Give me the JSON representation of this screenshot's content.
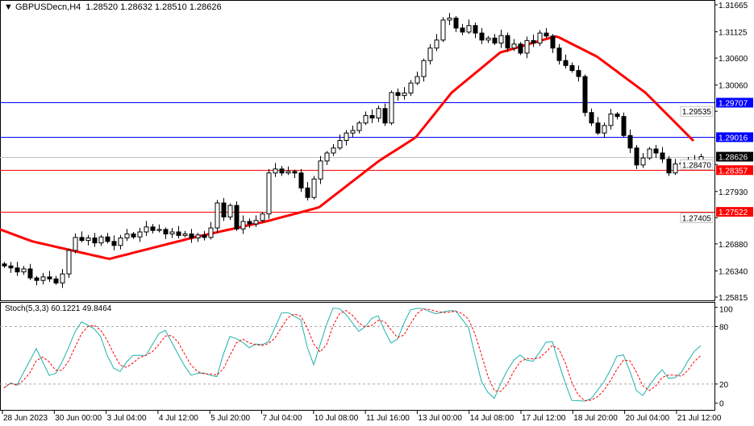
{
  "header": {
    "symbol_line": "GBPUSDecn,H4  1.28520 1.28632 1.28510 1.28626"
  },
  "chart_data": [
    {
      "type": "candlestick",
      "title": "GBPUSDecn,H4",
      "ohlc_last": {
        "open": 1.2852,
        "high": 1.28632,
        "low": 1.2851,
        "close": 1.28626
      },
      "ylim": [
        1.25815,
        1.31665
      ],
      "y_ticks": [
        "1.31665",
        "1.31125",
        "1.30600",
        "1.30060",
        "1.29535",
        "1.28470",
        "1.27930",
        "1.27405",
        "1.26880",
        "1.26340",
        "1.25815"
      ],
      "y_tick_values": [
        1.31665,
        1.31125,
        1.306,
        1.3006,
        1.29535,
        1.2847,
        1.2793,
        1.27405,
        1.2688,
        1.2634,
        1.25815
      ],
      "closes": [
        1.2644,
        1.264,
        1.2632,
        1.2638,
        1.262,
        1.2615,
        1.2622,
        1.2618,
        1.261,
        1.2628,
        1.2675,
        1.2701,
        1.2695,
        1.27,
        1.269,
        1.2702,
        1.2693,
        1.2685,
        1.27,
        1.2708,
        1.2702,
        1.2712,
        1.2722,
        1.2715,
        1.2717,
        1.2708,
        1.2712,
        1.2705,
        1.2708,
        1.27,
        1.2706,
        1.2701,
        1.272,
        1.277,
        1.2742,
        1.2765,
        1.2718,
        1.2733,
        1.2728,
        1.2735,
        1.2748,
        1.283,
        1.2838,
        1.283,
        1.2833,
        1.283,
        1.28,
        1.2781,
        1.2818,
        1.2854,
        1.287,
        1.288,
        1.2895,
        1.291,
        1.2915,
        1.293,
        1.2945,
        1.294,
        1.2959,
        1.293,
        1.2991,
        1.2985,
        1.299,
        1.301,
        1.3023,
        1.3055,
        1.308,
        1.3096,
        1.3136,
        1.314,
        1.312,
        1.3112,
        1.3125,
        1.311,
        1.3096,
        1.31,
        1.309,
        1.3105,
        1.308,
        1.3088,
        1.307,
        1.3095,
        1.309,
        1.311,
        1.3104,
        1.308,
        1.3055,
        1.3045,
        1.3035,
        1.3023,
        1.2951,
        1.293,
        1.291,
        1.2925,
        1.2948,
        1.2943,
        1.2905,
        1.288,
        1.2846,
        1.286,
        1.2878,
        1.287,
        1.2858,
        1.283,
        1.2848,
        1.285,
        1.2854,
        1.2852,
        1.28626
      ],
      "moving_average": {
        "color": "#ff0000",
        "points": [
          [
            -0.6,
            1.2717
          ],
          [
            4.4,
            1.2693
          ],
          [
            16.3,
            1.2658
          ],
          [
            29.4,
            1.2701
          ],
          [
            40.6,
            1.2733
          ],
          [
            48.8,
            1.2761
          ],
          [
            58.1,
            1.2854
          ],
          [
            63.8,
            1.2901
          ],
          [
            69.4,
            1.2991
          ],
          [
            76.9,
            1.3071
          ],
          [
            85.6,
            1.3104
          ],
          [
            91.9,
            1.3063
          ],
          [
            99.4,
            1.2991
          ],
          [
            106.9,
            1.2894
          ]
        ]
      },
      "levels": [
        {
          "value": 1.29707,
          "label": "1.29707",
          "color": "#0000ff"
        },
        {
          "value": 1.29016,
          "label": "1.29016",
          "color": "#0000ff"
        },
        {
          "value": 1.28626,
          "label": "1.28626",
          "color": "#000000",
          "line": "#c0c0c0"
        },
        {
          "value": 1.28357,
          "label": "1.28357",
          "color": "#ff0000"
        },
        {
          "value": 1.27522,
          "label": "1.27522",
          "color": "#ff0000"
        }
      ],
      "x_ticks": [
        "28 Jun 2023",
        "30 Jun 00:00",
        "3 Jul 04:00",
        "4 Jul 12:00",
        "5 Jul 20:00",
        "7 Jul 04:00",
        "10 Jul 08:00",
        "11 Jul 16:00",
        "13 Jul 00:00",
        "14 Jul 08:00",
        "17 Jul 12:00",
        "18 Jul 20:00",
        "20 Jul 04:00",
        "21 Jul 12:00"
      ]
    },
    {
      "type": "line",
      "title": "Stoch(5,3,3) 60.1221 49.8464",
      "ylim": [
        0,
        100
      ],
      "y_ticks": [
        "100",
        "80",
        "20",
        "0"
      ],
      "y_tick_values": [
        100,
        80,
        20,
        0
      ],
      "levels": [
        80,
        20
      ],
      "main": {
        "color": "#20b2aa",
        "points": [
          [
            -0.2,
            15
          ],
          [
            1,
            21
          ],
          [
            2,
            19
          ],
          [
            5,
            57
          ],
          [
            7,
            29
          ],
          [
            8,
            31
          ],
          [
            9.4,
            48
          ],
          [
            11.7,
            86
          ],
          [
            14.7,
            75
          ],
          [
            16.5,
            40
          ],
          [
            17.8,
            31
          ],
          [
            19.7,
            50
          ],
          [
            22,
            50
          ],
          [
            24.3,
            76
          ],
          [
            25,
            76
          ],
          [
            27,
            51
          ],
          [
            28.8,
            29
          ],
          [
            30,
            31
          ],
          [
            31.6,
            32
          ],
          [
            32.8,
            23
          ],
          [
            34.8,
            70
          ],
          [
            36.7,
            66
          ],
          [
            37.8,
            57
          ],
          [
            38.9,
            62
          ],
          [
            39.6,
            60
          ],
          [
            41,
            64
          ],
          [
            43,
            94
          ],
          [
            43.9,
            95
          ],
          [
            46,
            87
          ],
          [
            47.8,
            36
          ],
          [
            50.8,
            99
          ],
          [
            51.6,
            100
          ],
          [
            52.5,
            97
          ],
          [
            55,
            75
          ],
          [
            56.4,
            82
          ],
          [
            57.7,
            96
          ],
          [
            59.8,
            63
          ],
          [
            60.7,
            62
          ],
          [
            62.8,
            97
          ],
          [
            64.6,
            100
          ],
          [
            66.8,
            93
          ],
          [
            69.8,
            98
          ],
          [
            72,
            79
          ],
          [
            73.9,
            24
          ],
          [
            75.8,
            2
          ],
          [
            77.6,
            30
          ],
          [
            79.7,
            52
          ],
          [
            81.7,
            41
          ],
          [
            82.9,
            52
          ],
          [
            84.7,
            71
          ],
          [
            86.2,
            37
          ],
          [
            87.9,
            3
          ],
          [
            90.7,
            2
          ],
          [
            93.4,
            26
          ],
          [
            95.2,
            52
          ],
          [
            96.3,
            50
          ],
          [
            97.8,
            15
          ],
          [
            98.9,
            7
          ],
          [
            100.8,
            26
          ],
          [
            102,
            35
          ],
          [
            103,
            26
          ],
          [
            104.6,
            27
          ],
          [
            105.6,
            40
          ],
          [
            107.6,
            60.1221
          ]
        ]
      },
      "signal": {
        "color": "#ff0000",
        "last": 49.8464
      }
    }
  ]
}
